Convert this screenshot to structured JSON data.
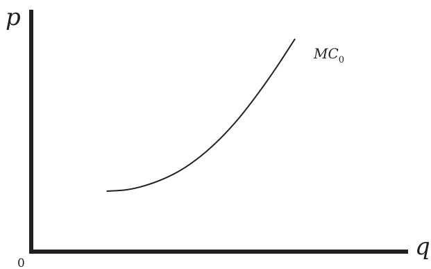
{
  "chart_data": {
    "type": "line",
    "ylabel": "p",
    "xlabel": "q",
    "origin_label": "0",
    "xlim": [
      0,
      10
    ],
    "ylim": [
      0,
      10
    ],
    "series": [
      {
        "name": "MC",
        "name_subscript": "0",
        "x": [
          2.0,
          2.5,
          3.0,
          3.5,
          4.0,
          4.5,
          5.0,
          5.5,
          6.0,
          6.5,
          7.0,
          7.34
        ],
        "y": [
          2.5,
          2.55,
          2.72,
          3.0,
          3.4,
          3.95,
          4.65,
          5.5,
          6.5,
          7.6,
          8.8,
          8.8
        ]
      }
    ],
    "grid": false,
    "legend": "none",
    "colors": {
      "axis": "#231f20",
      "curve": "#231f20"
    }
  }
}
